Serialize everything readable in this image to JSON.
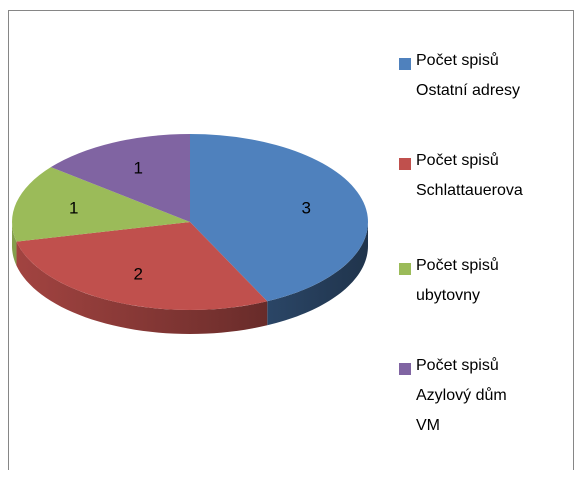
{
  "chart_data": {
    "type": "pie",
    "three_d": true,
    "categories": [
      "Počet spisů Ostatní adresy",
      "Počet spisů Schlattauerova",
      "Počet spisů ubytovny",
      "Počet spisů Azylový dům VM"
    ],
    "values": [
      3,
      2,
      1,
      1
    ],
    "colors": [
      "#4f81bd",
      "#c0504d",
      "#9bbb59",
      "#8064a2"
    ],
    "legend": "right"
  }
}
